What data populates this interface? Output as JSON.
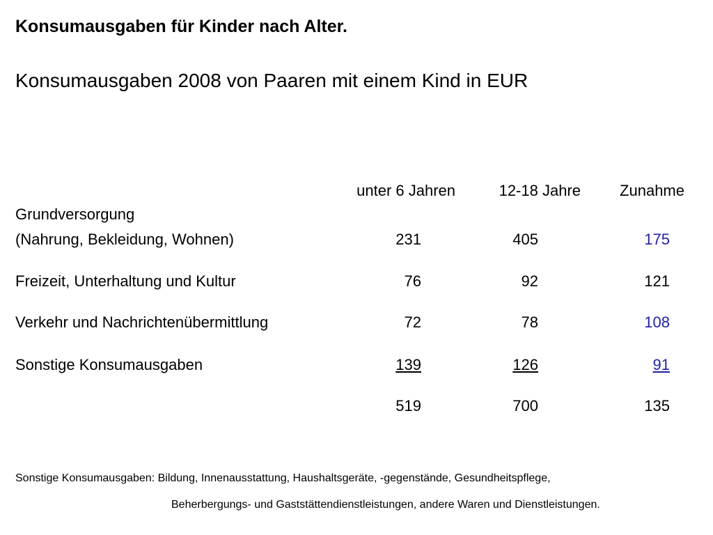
{
  "title": "Konsumausgaben für Kinder nach Alter.",
  "subtitle": "Konsumausgaben 2008 von Paaren mit einem Kind in EUR",
  "columns": [
    "unter 6 Jahren",
    "12-18 Jahre",
    "Zunahme"
  ],
  "rows": [
    {
      "label_line1": "Grundversorgung",
      "label_line2": "(Nahrung, Bekleidung, Wohnen)",
      "v1": "231",
      "v2": "405",
      "v3": "175"
    },
    {
      "label": "Freizeit, Unterhaltung und Kultur",
      "v1": "76",
      "v2": "92",
      "v3": "121"
    },
    {
      "label": "Verkehr und Nachrichtenübermittlung",
      "v1": "72",
      "v2": "78",
      "v3": "108"
    },
    {
      "label": "Sonstige Konsumausgaben",
      "v1": "139",
      "v2": "126",
      "v3": "91"
    }
  ],
  "totals": {
    "v1": "519",
    "v2": "700",
    "v3": "135"
  },
  "footnote_line1": "Sonstige Konsumausgaben: Bildung, Innenausstattung, Haushaltsgeräte, -gegenstände, Gesundheitspflege,",
  "footnote_line2": "Beherbergungs- und Gaststättendienstleistungen, andere Waren und Dienstleistungen.",
  "colors": {
    "highlight_blue": "#1f1fb0"
  }
}
